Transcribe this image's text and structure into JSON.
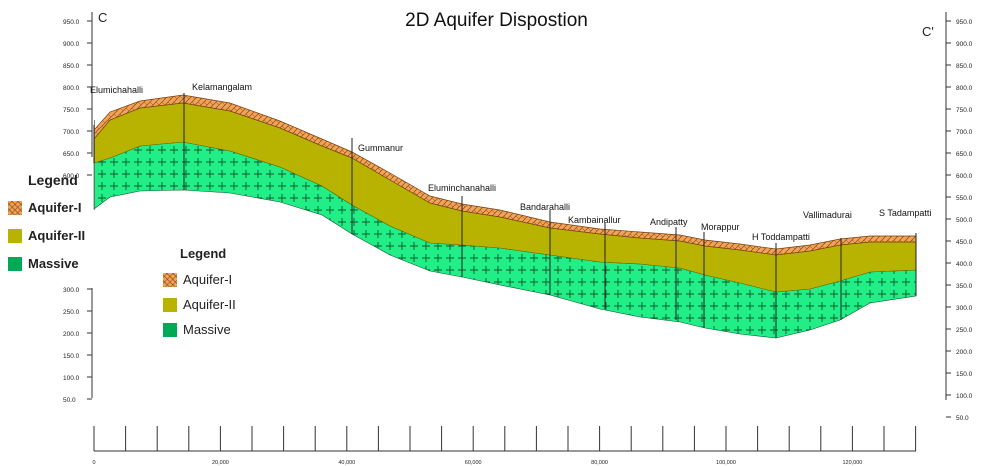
{
  "title": "2D Aquifer Dispostion",
  "section_start": "C",
  "section_end": "C'",
  "legend_left": {
    "title": "Legend",
    "items": [
      {
        "label": "Aquifer-I",
        "color": "#f2a35a"
      },
      {
        "label": "Aquifer-II",
        "color": "#b8b200"
      },
      {
        "label": "Massive",
        "color": "#22ee88"
      }
    ]
  },
  "legend_center": {
    "title": "Legend",
    "items": [
      {
        "label": "Aquifer-I",
        "color": "#f2a35a"
      },
      {
        "label": "Aquifer-II",
        "color": "#b8b200"
      },
      {
        "label": "Massive",
        "color": "#22ee88"
      }
    ]
  },
  "left_axis_ticks_upper": [
    "950.0",
    "900.0",
    "850.0",
    "800.0",
    "750.0",
    "700.0",
    "650.0",
    "600.0"
  ],
  "left_axis_ticks_lower": [
    "300.0",
    "250.0",
    "200.0",
    "150.0",
    "100.0",
    "50.0"
  ],
  "right_axis_ticks": [
    "950.0",
    "900.0",
    "850.0",
    "800.0",
    "750.0",
    "700.0",
    "650.0",
    "600.0",
    "550.0",
    "500.0",
    "450.0",
    "400.0",
    "350.0",
    "300.0",
    "250.0",
    "200.0",
    "150.0",
    "100.0",
    "50.0"
  ],
  "x_axis_labels": [
    "0",
    "20,000",
    "40,000",
    "60,000",
    "80,000",
    "100,000",
    "120,000"
  ],
  "wells": [
    {
      "name": "Elumichahalli"
    },
    {
      "name": "Kelamangalam"
    },
    {
      "name": "Gummanur"
    },
    {
      "name": "Eluminchanahalli"
    },
    {
      "name": "Bandarahalli"
    },
    {
      "name": "Kambainallur"
    },
    {
      "name": "Andipatty"
    },
    {
      "name": "Morappur"
    },
    {
      "name": "H Toddampatti"
    },
    {
      "name": "Vallimadurai"
    },
    {
      "name": "S Tadampatti"
    }
  ]
}
